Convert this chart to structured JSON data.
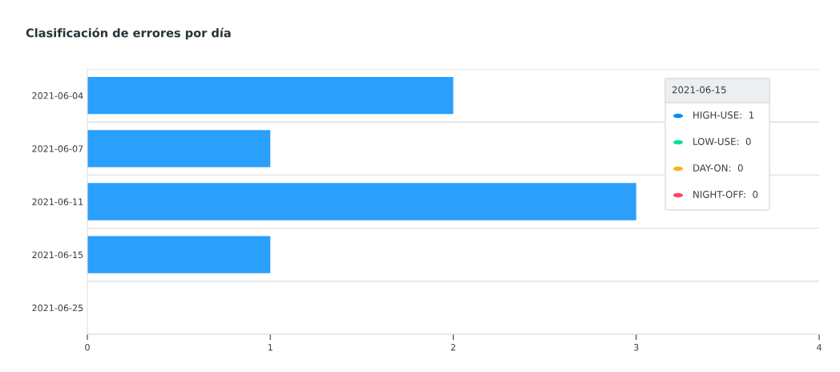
{
  "chart_data": {
    "type": "bar",
    "title": "Clasificación de errores por día",
    "orientation": "horizontal",
    "categories": [
      "2021-06-04",
      "2021-06-07",
      "2021-06-11",
      "2021-06-15",
      "2021-06-25"
    ],
    "values": [
      2,
      1,
      3,
      1,
      0
    ],
    "color": "#2a9ffc",
    "xlim": [
      0,
      4
    ],
    "xticks": [
      0,
      1,
      2,
      3,
      4
    ],
    "grid": "y",
    "annotations": [
      "2021-06-15",
      "HIGH-USE:  1",
      "LOW-USE:  0",
      "DAY-ON:  0",
      "NIGHT-OFF:  0"
    ]
  }
}
